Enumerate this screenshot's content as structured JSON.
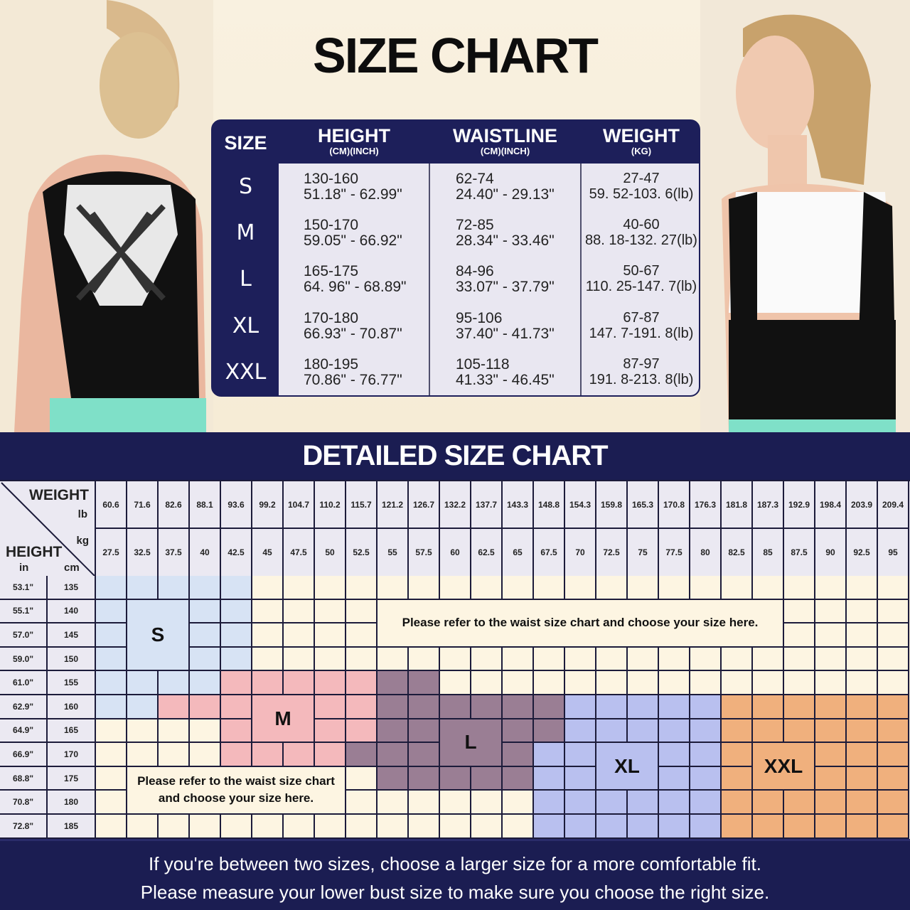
{
  "title": "SIZE CHART",
  "size_table": {
    "headers": [
      {
        "label": "SIZE",
        "sub": ""
      },
      {
        "label": "HEIGHT",
        "sub": "(CM)(INCH)"
      },
      {
        "label": "WAISTLINE",
        "sub": "(CM)(INCH)"
      },
      {
        "label": "WEIGHT",
        "sub": "(KG)"
      }
    ],
    "rows": [
      {
        "size": "S",
        "height_cm": "130-160",
        "height_in": "51.18\" - 62.99\"",
        "waist_cm": "62-74",
        "waist_in": "24.40\" - 29.13\"",
        "weight_kg": "27-47",
        "weight_lb": "59. 52-103. 6(lb)"
      },
      {
        "size": "M",
        "height_cm": "150-170",
        "height_in": "59.05\" - 66.92\"",
        "waist_cm": "72-85",
        "waist_in": "28.34\" - 33.46\"",
        "weight_kg": "40-60",
        "weight_lb": "88. 18-132. 27(lb)"
      },
      {
        "size": "L",
        "height_cm": "165-175",
        "height_in": "64. 96\" -  68.89\"",
        "waist_cm": "84-96",
        "waist_in": "33.07\" - 37.79\"",
        "weight_kg": "50-67",
        "weight_lb": "110. 25-147. 7(lb)"
      },
      {
        "size": "XL",
        "height_cm": "170-180",
        "height_in": "66.93\" - 70.87\"",
        "waist_cm": "95-106",
        "waist_in": "37.40\" - 41.73\"",
        "weight_kg": "67-87",
        "weight_lb": "147. 7-191. 8(lb)"
      },
      {
        "size": "XXL",
        "height_cm": "180-195",
        "height_in": "70.86\" - 76.77\"",
        "waist_cm": "105-118",
        "waist_in": "41.33\" - 46.45\"",
        "weight_kg": "87-97",
        "weight_lb": "191. 8-213. 8(lb)"
      }
    ]
  },
  "detailed": {
    "title": "DETAILED SIZE CHART",
    "corner": {
      "weight": "WEIGHT",
      "lb": "lb",
      "kg": "kg",
      "height": "HEIGHT",
      "in": "in",
      "cm": "cm"
    },
    "weight_lb": [
      "60.6",
      "71.6",
      "82.6",
      "88.1",
      "93.6",
      "99.2",
      "104.7",
      "110.2",
      "115.7",
      "121.2",
      "126.7",
      "132.2",
      "137.7",
      "143.3",
      "148.8",
      "154.3",
      "159.8",
      "165.3",
      "170.8",
      "176.3",
      "181.8",
      "187.3",
      "192.9",
      "198.4",
      "203.9",
      "209.4"
    ],
    "weight_kg": [
      "27.5",
      "32.5",
      "37.5",
      "40",
      "42.5",
      "45",
      "47.5",
      "50",
      "52.5",
      "55",
      "57.5",
      "60",
      "62.5",
      "65",
      "67.5",
      "70",
      "72.5",
      "75",
      "77.5",
      "80",
      "82.5",
      "85",
      "87.5",
      "90",
      "92.5",
      "95"
    ],
    "heights": [
      {
        "in": "53.1\"",
        "cm": "135",
        "fill": "SSSSS....................."
      },
      {
        "in": "55.1\"",
        "cm": "140",
        "fill": "SSSSS....................."
      },
      {
        "in": "57.0\"",
        "cm": "145",
        "fill": "SSSSS....................."
      },
      {
        "in": "59.0\"",
        "cm": "150",
        "fill": "SSSSS....................."
      },
      {
        "in": "61.0\"",
        "cm": "155",
        "fill": "SSSSMMMMMLL..............."
      },
      {
        "in": "62.9\"",
        "cm": "160",
        "fill": "SSMMMMMMMLLLLLLXXXXXZZZZZZ"
      },
      {
        "in": "64.9\"",
        "cm": "165",
        "fill": "....MMMMMLLLLLLXXXXXZZZZZZ"
      },
      {
        "in": "66.9\"",
        "cm": "170",
        "fill": "....MMMMLLLLLLXXXXXXZZZZZZ"
      },
      {
        "in": "68.8\"",
        "cm": "175",
        "fill": ".........LLLLLXXXXXXZZZZZZ"
      },
      {
        "in": "70.8\"",
        "cm": "180",
        "fill": "..............XXXXXXZZZZZZ"
      },
      {
        "in": "72.8\"",
        "cm": "185",
        "fill": "..............XXXXXXZZZZZZ"
      }
    ],
    "size_labels": {
      "S": "S",
      "M": "M",
      "L": "L",
      "XL": "XL",
      "XXL": "XXL"
    },
    "colors": {
      "S": "#d7e3f4",
      "M": "#f4b9bc",
      "L": "#9a7e94",
      "X": "#b9c0ef",
      "Z": "#f0b07d",
      ".": "#fdf5e2"
    },
    "note_top": "Please refer to the waist size chart and choose your size here.",
    "note_bottom_1": "Please refer to the waist size chart",
    "note_bottom_2": "and choose your size here."
  },
  "footer": {
    "line1": "If you're between two sizes, choose a larger size for a more comfortable fit.",
    "line2": "Please measure your lower bust size to make sure you choose the right size."
  },
  "theme": {
    "navy": "#1b1d52",
    "cream": "#f8efdc"
  }
}
